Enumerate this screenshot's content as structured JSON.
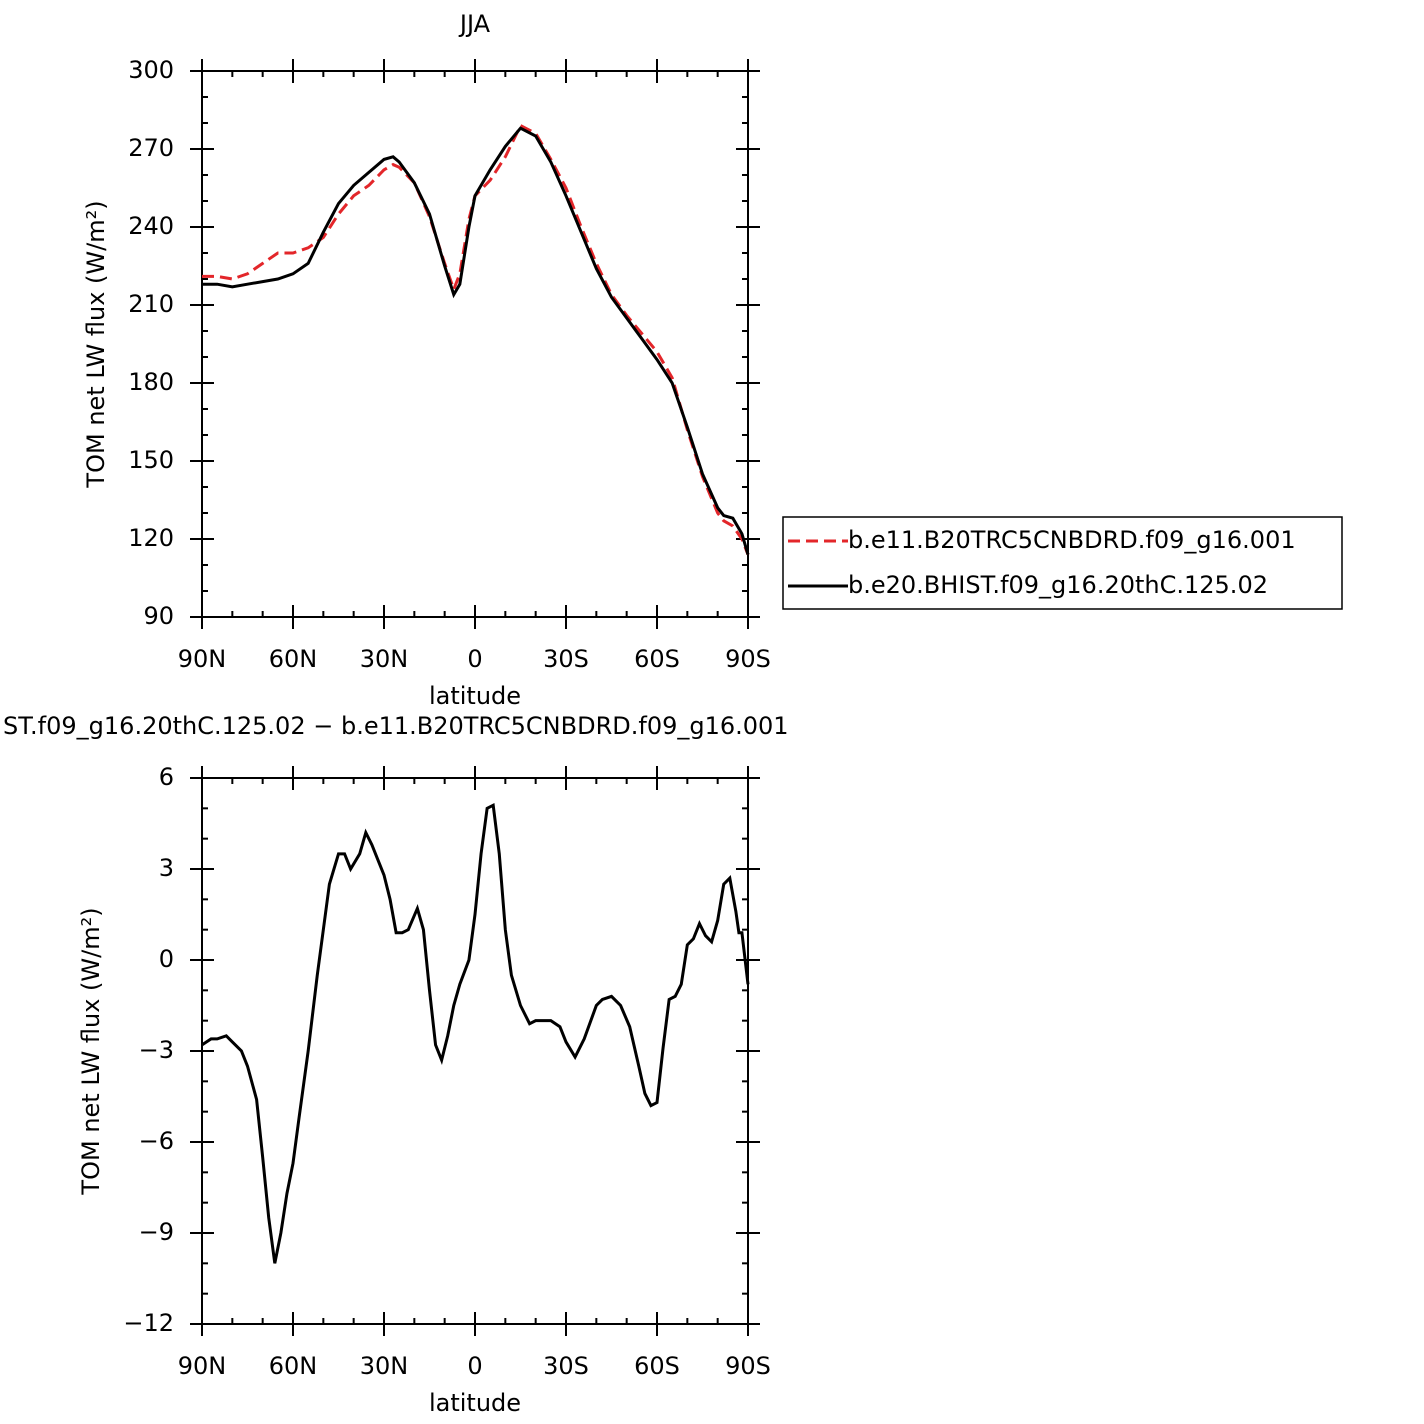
{
  "chart_data": [
    {
      "type": "line",
      "title": "JJA",
      "xlabel": "latitude",
      "ylabel": "TOM net LW flux (W/m²)",
      "xlim": [
        90,
        -90
      ],
      "xticks": [
        {
          "value": 90,
          "label": "90N"
        },
        {
          "value": 60,
          "label": "60N"
        },
        {
          "value": 30,
          "label": "30N"
        },
        0,
        {
          "value": -30,
          "label": "30S"
        },
        {
          "value": -60,
          "label": "60S"
        },
        {
          "value": -90,
          "label": "90S"
        }
      ],
      "ylim": [
        90,
        300
      ],
      "yticks": [
        90,
        120,
        150,
        180,
        210,
        240,
        270,
        300
      ],
      "legend": "right",
      "x": [
        90,
        85,
        80,
        75,
        70,
        65,
        60,
        55,
        50,
        45,
        40,
        35,
        30,
        27,
        25,
        20,
        15,
        10,
        7,
        5,
        2,
        0,
        -5,
        -10,
        -15,
        -20,
        -25,
        -30,
        -35,
        -40,
        -45,
        -50,
        -55,
        -60,
        -65,
        -70,
        -75,
        -80,
        -82,
        -85,
        -88,
        -90
      ],
      "series": [
        {
          "name": "b.e11.B20TRC5CNBDRD.f09_g16.001",
          "color": "#e3262a",
          "style": "dashed",
          "values": [
            221,
            221,
            220,
            222,
            226,
            230,
            230,
            232,
            236,
            245,
            252,
            256,
            262,
            264,
            263,
            257,
            244,
            226,
            216,
            222,
            243,
            252,
            258,
            267,
            279,
            276,
            266,
            255,
            240,
            226,
            214,
            206,
            199,
            192,
            182,
            162,
            144,
            130,
            127,
            125,
            120,
            114
          ]
        },
        {
          "name": "b.e20.BHIST.f09_g16.20thC.125.02",
          "color": "#000000",
          "style": "solid",
          "values": [
            218,
            218,
            217,
            218,
            219,
            220,
            222,
            226,
            238,
            249,
            256,
            261,
            266,
            267,
            265,
            257,
            245,
            225,
            214,
            218,
            240,
            252,
            262,
            271,
            278,
            275,
            265,
            252,
            238,
            224,
            213,
            205,
            197,
            189,
            180,
            163,
            145,
            132,
            129,
            128,
            122,
            114
          ]
        }
      ]
    },
    {
      "type": "line",
      "title": "ST.f09_g16.20thC.125.02 − b.e11.B20TRC5CNBDRD.f09_g16.001",
      "xlabel": "latitude",
      "ylabel": "TOM net LW flux (W/m²)",
      "xlim": [
        90,
        -90
      ],
      "xticks": [
        {
          "value": 90,
          "label": "90N"
        },
        {
          "value": 60,
          "label": "60N"
        },
        {
          "value": 30,
          "label": "30N"
        },
        0,
        {
          "value": -30,
          "label": "30S"
        },
        {
          "value": -60,
          "label": "60S"
        },
        {
          "value": -90,
          "label": "90S"
        }
      ],
      "ylim": [
        -12,
        6
      ],
      "yticks": [
        {
          "value": -12,
          "label": "−12"
        },
        {
          "value": -9,
          "label": "−9"
        },
        {
          "value": -6,
          "label": "−6"
        },
        {
          "value": -3,
          "label": "−3"
        },
        0,
        3,
        6
      ],
      "x": [
        90,
        87,
        85,
        82,
        80,
        77,
        75,
        72,
        70,
        68,
        66,
        64,
        62,
        60,
        58,
        55,
        52,
        50,
        48,
        45,
        43,
        41,
        38,
        36,
        34,
        32,
        30,
        28,
        26,
        24,
        22,
        19,
        17,
        15,
        13,
        11,
        9,
        7,
        5,
        2,
        0,
        -2,
        -4,
        -6,
        -8,
        -10,
        -12,
        -15,
        -18,
        -20,
        -25,
        -28,
        -30,
        -33,
        -36,
        -40,
        -42,
        -45,
        -48,
        -51,
        -54,
        -56,
        -58,
        -60,
        -62,
        -64,
        -66,
        -68,
        -70,
        -72,
        -74,
        -76,
        -78,
        -80,
        -82,
        -84,
        -86,
        -87,
        -88,
        -90
      ],
      "series": [
        {
          "color": "#000000",
          "style": "solid",
          "values": [
            -2.8,
            -2.6,
            -2.6,
            -2.5,
            -2.7,
            -3.0,
            -3.5,
            -4.6,
            -6.5,
            -8.5,
            -10.0,
            -9.0,
            -7.7,
            -6.7,
            -5.2,
            -3.0,
            -0.5,
            1.0,
            2.5,
            3.5,
            3.5,
            3.0,
            3.5,
            4.2,
            3.8,
            3.3,
            2.8,
            2.0,
            0.9,
            0.9,
            1.0,
            1.7,
            1.0,
            -1.0,
            -2.8,
            -3.3,
            -2.5,
            -1.5,
            -0.8,
            0.0,
            1.5,
            3.5,
            5.0,
            5.1,
            3.5,
            1.0,
            -0.5,
            -1.5,
            -2.1,
            -2.0,
            -2.0,
            -2.2,
            -2.7,
            -3.2,
            -2.6,
            -1.5,
            -1.3,
            -1.2,
            -1.5,
            -2.2,
            -3.5,
            -4.4,
            -4.8,
            -4.7,
            -2.9,
            -1.3,
            -1.2,
            -0.8,
            0.5,
            0.7,
            1.2,
            0.8,
            0.6,
            1.3,
            2.5,
            2.7,
            1.6,
            0.9,
            0.9,
            -0.8
          ]
        }
      ]
    }
  ]
}
